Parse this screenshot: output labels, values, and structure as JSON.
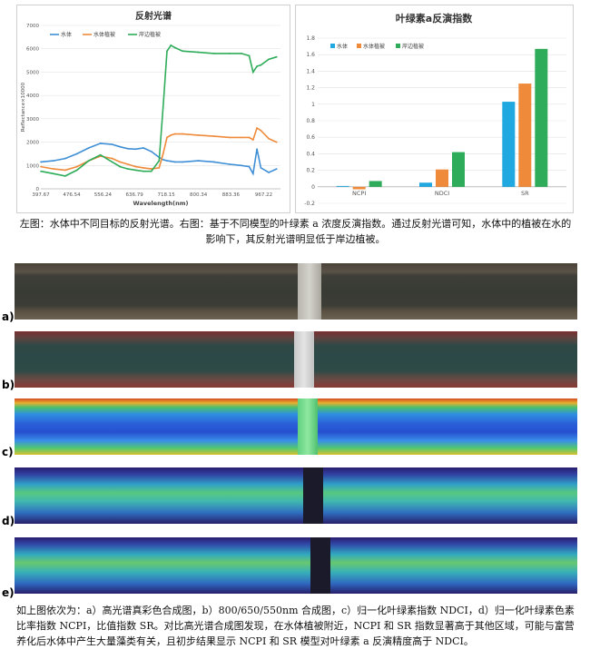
{
  "left_caption": "左图：水体中不同目标的反射光谱。右图：基于不同模型的叶绿素 a 浓度反演指数。通过反射光谱可知，水体中的植被在水的影响下，其反射光谱明显低于岸边植被。",
  "bottom_caption": "如上图依次为：a）高光谱真彩色合成图，b）800/650/550nm 合成图，c）归一化叶绿素指数 NDCI，d）归一化叶绿素色素比率指数 NCPI，比值指数 SR。对比高光谱合成图发现，在水体植被附近，NCPI 和 SR 指数显著高于其他区域，可能与富营养化后水体中产生大量藻类有关，且初步结果显示 NCPI 和 SR 模型对叶绿素 a 反演精度高于 NDCI。",
  "strips": [
    {
      "label": "a)"
    },
    {
      "label": "b)"
    },
    {
      "label": "c)"
    },
    {
      "label": "d)"
    },
    {
      "label": "e)"
    }
  ],
  "chart_data": [
    {
      "type": "line",
      "title": "反射光谱",
      "xlabel": "Wavelength(nm)",
      "ylabel": "Reflectance×10000",
      "ylim": [
        0,
        7000
      ],
      "xlim": [
        397.67,
        1010
      ],
      "x_ticks": [
        "397.67",
        "476.54",
        "556.24",
        "636.79",
        "718.15",
        "800.34",
        "883.36",
        "967.22"
      ],
      "y_ticks": [
        "0",
        "1000",
        "2000",
        "3000",
        "4000",
        "5000",
        "6000",
        "7000"
      ],
      "legend_position": "top-left",
      "grid": true,
      "x": [
        398,
        430,
        460,
        490,
        520,
        550,
        580,
        600,
        620,
        640,
        660,
        680,
        700,
        710,
        720,
        730,
        740,
        760,
        800,
        840,
        880,
        910,
        930,
        940,
        950,
        960,
        980,
        1000
      ],
      "series": [
        {
          "name": "水体",
          "color": "#3f8fd6",
          "values": [
            1150,
            1200,
            1300,
            1500,
            1750,
            1950,
            1900,
            1800,
            1720,
            1700,
            1750,
            1600,
            1350,
            1250,
            1200,
            1180,
            1150,
            1150,
            1200,
            1150,
            1050,
            1000,
            950,
            650,
            1700,
            900,
            700,
            850
          ]
        },
        {
          "name": "水体植被",
          "color": "#ef8a3a",
          "values": [
            950,
            850,
            800,
            950,
            1200,
            1400,
            1300,
            1150,
            1050,
            950,
            900,
            850,
            900,
            1500,
            2200,
            2300,
            2350,
            2350,
            2300,
            2250,
            2200,
            2200,
            2200,
            2100,
            2600,
            2500,
            2150,
            2000
          ]
        },
        {
          "name": "岸边植被",
          "color": "#2eac59",
          "values": [
            750,
            650,
            550,
            800,
            1200,
            1450,
            1150,
            950,
            850,
            800,
            750,
            750,
            1200,
            3500,
            5900,
            6150,
            6050,
            5900,
            5850,
            5800,
            5800,
            5800,
            5700,
            5000,
            5250,
            5300,
            5550,
            5650
          ]
        }
      ]
    },
    {
      "type": "bar",
      "title": "叶绿素a反演指数",
      "categories": [
        "NCPI",
        "NDCI",
        "SR"
      ],
      "ylim": [
        -0.2,
        1.8
      ],
      "y_ticks": [
        "-0.2",
        "0",
        "0.2",
        "0.4",
        "0.6",
        "0.8",
        "1",
        "1.2",
        "1.4",
        "1.6",
        "1.8"
      ],
      "legend_position": "top-left",
      "grid": true,
      "series": [
        {
          "name": "水体",
          "color": "#20a8e0",
          "values": [
            0.01,
            0.05,
            1.03
          ]
        },
        {
          "name": "水体植被",
          "color": "#ef8a3a",
          "values": [
            -0.03,
            0.21,
            1.25
          ]
        },
        {
          "name": "岸边植被",
          "color": "#2eac59",
          "values": [
            0.07,
            0.42,
            1.67
          ]
        }
      ]
    }
  ]
}
